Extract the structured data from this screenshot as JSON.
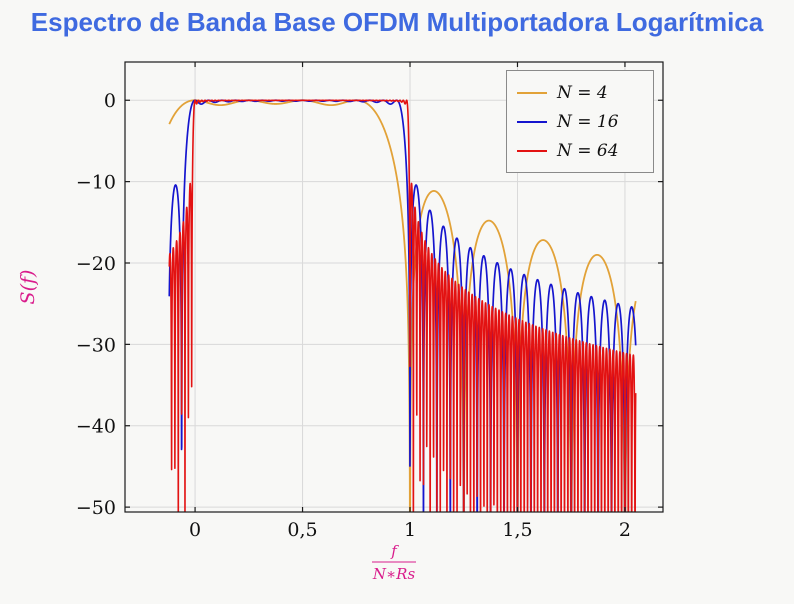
{
  "title": {
    "text": "Espectro de Banda Base OFDM Multiportadora Logarítmica",
    "color": "#3f6ae0"
  },
  "axis": {
    "frame_color": "#1a1a1a",
    "grid_color": "#d9d9d9",
    "tick_color": "#1a1a1a",
    "tick_label_color": "#111111",
    "axis_label_color": "#d91c8c"
  },
  "legend": {
    "items": [
      {
        "label": "N = 4",
        "color": "#e2a238"
      },
      {
        "label": "N = 16",
        "color": "#1515ce"
      },
      {
        "label": "N = 64",
        "color": "#e31212"
      }
    ]
  },
  "chart_data": {
    "type": "line",
    "title": "Espectro de Banda Base OFDM Multiportadora Logarítmica",
    "xlabel": "f/(N*Rs)",
    "xlabel_numerator": "f",
    "xlabel_denominator": "N∗Rs",
    "ylabel": "S(f)",
    "xlim": [
      -0.326,
      2.177
    ],
    "ylim": [
      -50.6,
      4.7
    ],
    "grid": true,
    "legend_position": "top-right inside",
    "x_ticks": [
      {
        "value": 0,
        "label": "0"
      },
      {
        "value": 0.5,
        "label": "0,5"
      },
      {
        "value": 1,
        "label": "1"
      },
      {
        "value": 1.5,
        "label": "1,5"
      },
      {
        "value": 2,
        "label": "2"
      }
    ],
    "y_ticks": [
      {
        "value": 0,
        "label": "0"
      },
      {
        "value": -10,
        "label": "−10"
      },
      {
        "value": -20,
        "label": "−20"
      },
      {
        "value": -30,
        "label": "−30"
      },
      {
        "value": -40,
        "label": "−40"
      },
      {
        "value": -50,
        "label": "−50"
      }
    ],
    "model": {
      "description": "OFDM baseband power spectrum, x = f/(N·Rs): S_dB(x) = 10·log10( Σ_{k=0}^{N−1} sinc²(N·x − k) ); flat ≈ 0 dB passband for 0 ≤ x ≤ 1, sinc sidelobes outside",
      "x_start": -0.12,
      "x_end": 2.05,
      "samples": 3000,
      "passband": [
        0,
        1
      ],
      "flat_level_db": 0
    },
    "series": [
      {
        "name": "N = 4",
        "N": 4,
        "color": "#e2a238",
        "width": 1.8
      },
      {
        "name": "N = 16",
        "N": 16,
        "color": "#1515ce",
        "width": 1.7
      },
      {
        "name": "N = 64",
        "N": 64,
        "color": "#e31212",
        "width": 1.6
      }
    ]
  }
}
